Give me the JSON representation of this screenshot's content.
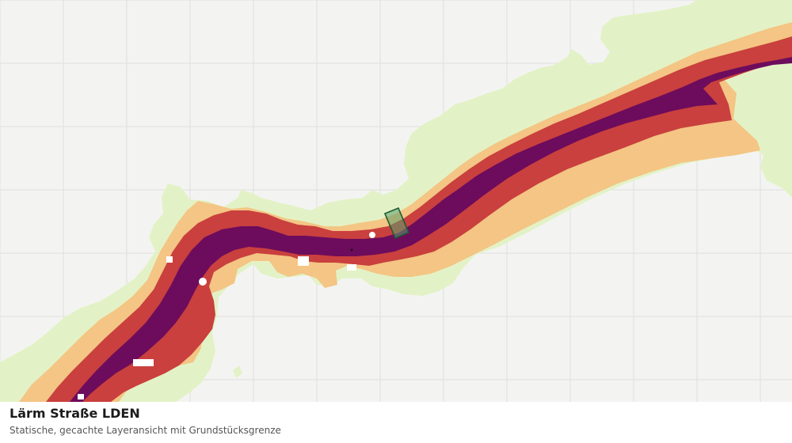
{
  "caption": {
    "title": "Lärm Straße LDEN",
    "subtitle": "Statische, gecachte Layeransicht mit Grundstücksgrenze"
  },
  "map": {
    "background_color": "#f3f4f2",
    "grid_color": "#dfe1de",
    "noise_zones": [
      {
        "level": 1,
        "color": "#e3f2c6"
      },
      {
        "level": 2,
        "color": "#f4c584"
      },
      {
        "level": 3,
        "color": "#c9403e"
      },
      {
        "level": 4,
        "color": "#6d0c5c"
      }
    ],
    "parcel": {
      "stroke": "#1f5b33",
      "fill": "#5a9e6b"
    }
  }
}
